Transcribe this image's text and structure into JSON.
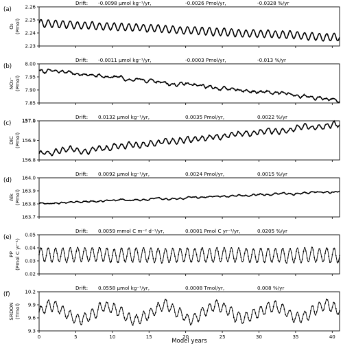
{
  "figure": {
    "xlabel": "Model years",
    "xlim": [
      0,
      41
    ],
    "xticks": [
      0,
      5,
      10,
      15,
      20,
      25,
      30,
      35,
      40
    ]
  },
  "chart_data": [
    {
      "type": "line",
      "panel_label": "(a)",
      "ylabel_lines": [
        "O₂",
        "(Pmol)"
      ],
      "drift_text": [
        "Drift:",
        "-0.0098 μmol kg⁻¹/yr,",
        "-0.0026 Pmol/yr,",
        "-0.0328 %/yr"
      ],
      "ylim": [
        2.23,
        2.26
      ],
      "yticks": [
        2.23,
        2.24,
        2.25,
        2.26
      ],
      "ytick_labels": [
        "2.23",
        "2.24",
        "2.25",
        "2.26"
      ],
      "series": [
        {
          "x_start": 0,
          "x_end": 41,
          "start": 2.2475,
          "end": 2.2365,
          "amplitude": 0.0028,
          "period": 1.0,
          "noise": 0.0008
        }
      ]
    },
    {
      "type": "line",
      "panel_label": "(b)",
      "ylabel_lines": [
        "NO₃⁻",
        "(Pmol)"
      ],
      "drift_text": [
        "Drift:",
        "-0.0011 μmol kg⁻¹/yr,",
        "-0.0003 Pmol/yr,",
        "-0.013 %/yr"
      ],
      "ylim": [
        7.85,
        8.0
      ],
      "yticks": [
        7.85,
        7.9,
        7.95,
        8.0
      ],
      "ytick_labels": [
        "7.85",
        "7.90",
        "7.95",
        "8.00"
      ],
      "series": [
        {
          "x_start": 0,
          "x_end": 41,
          "start": 7.975,
          "end": 7.862,
          "amplitude": 0.004,
          "period": 1.0,
          "noise": 0.012
        }
      ]
    },
    {
      "type": "line",
      "panel_label": "(c)",
      "ylabel_lines": [
        "DIC",
        "(Pmol)"
      ],
      "drift_text": [
        "Drift:",
        "0.0132 μmol kg⁻¹/yr,",
        "0.0035 Pmol/yr,",
        "0.0022 %/yr"
      ],
      "ylim": [
        156.8,
        157.0
      ],
      "yticks": [
        156.8,
        156.9,
        157.0
      ],
      "ytick_labels": [
        "156.8",
        "156.9",
        "157.0"
      ],
      "extra_tick_labels": [
        "157.1"
      ],
      "series": [
        {
          "x_start": 0,
          "x_end": 41,
          "start": 156.83,
          "end": 156.98,
          "amplitude": 0.012,
          "period": 1.0,
          "noise": 0.015
        }
      ]
    },
    {
      "type": "line",
      "panel_label": "(d)",
      "ylabel_lines": [
        "Alk",
        "(Pmol)"
      ],
      "drift_text": [
        "Drift:",
        "0.0092 μmol kg⁻¹/yr,",
        "0.0024 Pmol/yr,",
        "0.0015 %/yr"
      ],
      "ylim": [
        163.7,
        164.0
      ],
      "yticks": [
        163.7,
        163.8,
        163.9,
        164.0
      ],
      "ytick_labels": [
        "163.7",
        "163.8",
        "163.9",
        "164.0"
      ],
      "series": [
        {
          "x_start": 0,
          "x_end": 41,
          "start": 163.8,
          "end": 163.895,
          "amplitude": 0.004,
          "period": 1.0,
          "noise": 0.012
        }
      ]
    },
    {
      "type": "line",
      "panel_label": "(e)",
      "ylabel_lines": [
        "PP",
        "(Pmol C yr⁻¹)"
      ],
      "drift_text": [
        "Drift:",
        "0.0059 mmol C m⁻² d⁻¹/yr,",
        "0.0001 Pmol C yr⁻¹/yr,",
        "0.0205 %/yr"
      ],
      "ylim": [
        0.02,
        0.05
      ],
      "yticks": [
        0.02,
        0.03,
        0.04,
        0.05
      ],
      "ytick_labels": [
        "0.02",
        "0.03",
        "0.04",
        "0.05"
      ],
      "series": [
        {
          "x_start": 0,
          "x_end": 41,
          "start": 0.0345,
          "end": 0.0345,
          "amplitude": 0.0055,
          "period": 1.0,
          "noise": 0.0012,
          "markers": true
        }
      ]
    },
    {
      "type": "line",
      "panel_label": "(f)",
      "ylabel_lines": [
        "SRDON",
        "(Tmol)"
      ],
      "drift_text": [
        "Drift:",
        "0.0558 μmol kg⁻¹/yr,",
        "0.0008 Tmol/yr,",
        "0.008 %/yr"
      ],
      "ylim": [
        9.3,
        10.2
      ],
      "yticks": [
        9.3,
        9.6,
        9.9,
        10.2
      ],
      "ytick_labels": [
        "9.3",
        "9.6",
        "9.9",
        "10.2"
      ],
      "series": [
        {
          "x_start": 0,
          "x_end": 41,
          "start": 9.72,
          "end": 9.75,
          "amplitude": 0.12,
          "period": 1.0,
          "noise": 0.08,
          "slow_amplitude": 0.15,
          "slow_period": 7.5,
          "markers": true
        }
      ]
    }
  ]
}
